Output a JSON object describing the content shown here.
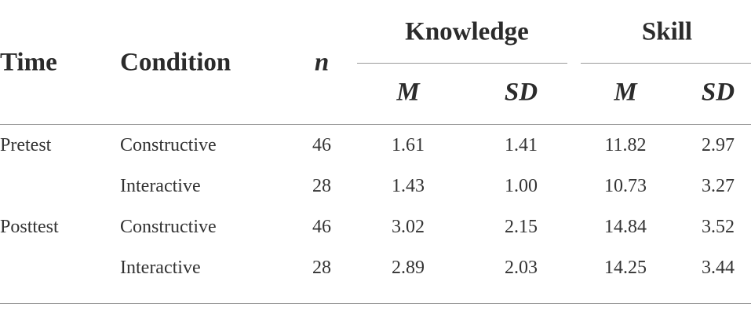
{
  "header": {
    "time": "Time",
    "condition": "Condition",
    "n": "n",
    "knowledge": {
      "label": "Knowledge",
      "columns": [
        "M",
        "SD"
      ]
    },
    "skill": {
      "label": "Skill",
      "columns": [
        "M",
        "SD"
      ]
    }
  },
  "groups": [
    {
      "time": "Pretest",
      "rows": [
        [
          "Constructive",
          "46",
          "1.61",
          "1.41",
          "11.82",
          "2.97"
        ],
        [
          "Interactive",
          "28",
          "1.43",
          "1.00",
          "10.73",
          "3.27"
        ]
      ]
    },
    {
      "time": "Posttest",
      "rows": [
        [
          "Constructive",
          "46",
          "3.02",
          "2.15",
          "14.84",
          "3.52"
        ],
        [
          "Interactive",
          "28",
          "2.89",
          "2.03",
          "14.25",
          "3.44"
        ]
      ]
    }
  ]
}
